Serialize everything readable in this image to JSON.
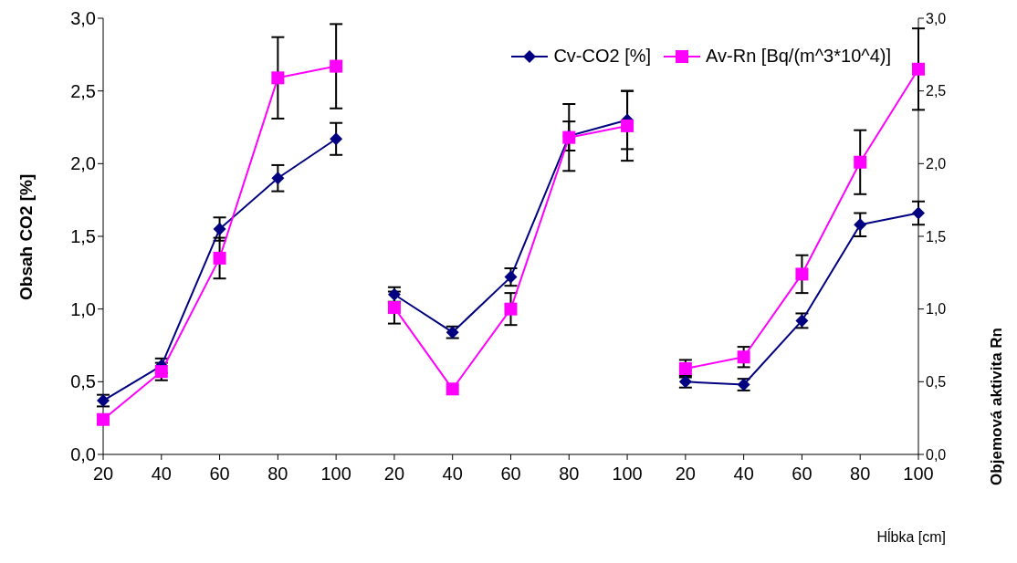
{
  "chart_data": {
    "type": "line",
    "xlabel": "Hĺbka [cm]",
    "ylabel": "Obsah CO2 [%]",
    "y2label": "Objemová aktivita Rn",
    "categories": [
      "20",
      "40",
      "60",
      "80",
      "100",
      "20",
      "40",
      "60",
      "80",
      "100",
      "20",
      "40",
      "60",
      "80",
      "100"
    ],
    "series": [
      {
        "name": "Cv-CO2 [%]",
        "color": "#000080",
        "marker": "diamond",
        "values": [
          0.37,
          0.61,
          1.55,
          1.9,
          2.17,
          null,
          null,
          null,
          null,
          null,
          null,
          null,
          null,
          null,
          null
        ],
        "errors": [
          0.04,
          0.05,
          0.08,
          0.09,
          0.11,
          null,
          null,
          null,
          null,
          null,
          null,
          null,
          null,
          null,
          null
        ]
      },
      {
        "name": "Av-Rn [Bq/(m^3*10^4)]",
        "color": "#ff00ff",
        "marker": "square",
        "axis": "y2",
        "values": [
          0.24,
          0.57,
          1.35,
          2.59,
          2.67,
          null,
          null,
          null,
          null,
          null,
          null,
          null,
          null,
          null,
          null
        ],
        "errors": [
          null,
          0.06,
          0.14,
          0.28,
          0.29,
          null,
          null,
          null,
          null,
          null,
          null,
          null,
          null,
          null,
          null
        ]
      },
      {
        "color": "#000080",
        "marker": "diamond",
        "values": [
          null,
          null,
          null,
          null,
          null,
          1.1,
          0.84,
          1.22,
          2.19,
          2.3,
          null,
          null,
          null,
          null,
          null
        ],
        "errors": [
          null,
          null,
          null,
          null,
          null,
          0.05,
          0.04,
          0.06,
          0.1,
          0.2,
          null,
          null,
          null,
          null,
          null
        ]
      },
      {
        "color": "#ff00ff",
        "marker": "square",
        "axis": "y2",
        "values": [
          null,
          null,
          null,
          null,
          null,
          1.01,
          0.45,
          1.0,
          2.18,
          2.26,
          null,
          null,
          null,
          null,
          null
        ],
        "errors": [
          null,
          null,
          null,
          null,
          null,
          0.11,
          null,
          0.11,
          0.23,
          0.24,
          null,
          null,
          null,
          null,
          null
        ]
      },
      {
        "color": "#000080",
        "marker": "diamond",
        "values": [
          null,
          null,
          null,
          null,
          null,
          null,
          null,
          null,
          null,
          null,
          0.5,
          0.48,
          0.92,
          1.58,
          1.66
        ],
        "errors": [
          null,
          null,
          null,
          null,
          null,
          null,
          null,
          null,
          null,
          null,
          0.04,
          0.04,
          0.05,
          0.08,
          0.08
        ]
      },
      {
        "color": "#ff00ff",
        "marker": "square",
        "axis": "y2",
        "values": [
          null,
          null,
          null,
          null,
          null,
          null,
          null,
          null,
          null,
          null,
          0.59,
          0.67,
          1.24,
          2.01,
          2.65
        ],
        "errors": [
          null,
          null,
          null,
          null,
          null,
          null,
          null,
          null,
          null,
          null,
          0.06,
          0.07,
          0.13,
          0.22,
          0.28
        ]
      }
    ],
    "ylim": [
      0,
      3
    ],
    "yticks": [
      {
        "value": 0,
        "label": "0,0"
      },
      {
        "value": 0.5,
        "label": "0,5"
      },
      {
        "value": 1,
        "label": "1,0"
      },
      {
        "value": 1.5,
        "label": "1,5"
      },
      {
        "value": 2,
        "label": "2,0"
      },
      {
        "value": 2.5,
        "label": "2,5"
      },
      {
        "value": 3,
        "label": "3,0"
      }
    ],
    "y2lim": [
      0,
      3
    ],
    "y2ticks": [
      {
        "value": 0,
        "label": "0,0"
      },
      {
        "value": 0.5,
        "label": "0,5"
      },
      {
        "value": 1,
        "label": "1,0"
      },
      {
        "value": 1.5,
        "label": "1,5"
      },
      {
        "value": 2,
        "label": "2,0"
      },
      {
        "value": 2.5,
        "label": "2,5"
      },
      {
        "value": 3,
        "label": "3,0"
      }
    ],
    "grid": false,
    "legend": "top right"
  }
}
